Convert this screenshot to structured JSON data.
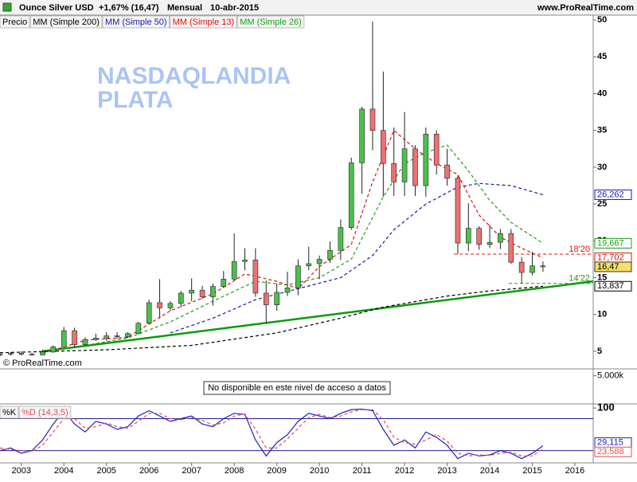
{
  "header": {
    "instrument": "Ounce Silver USD",
    "change": "+1,67% (16,47)",
    "period": "Mensual",
    "date": "10-abr-2015",
    "site": "www.ProRealTime.com"
  },
  "chart_data": [
    {
      "type": "candlestick",
      "name": "Precio",
      "annotations": [
        "NASDAQLANDIA",
        "PLATA"
      ],
      "source": "© ProRealTime.com",
      "x": [
        2002.5,
        2002.75,
        2003,
        2003.25,
        2003.5,
        2003.75,
        2004,
        2004.25,
        2004.5,
        2004.75,
        2005,
        2005.25,
        2005.5,
        2005.75,
        2006,
        2006.25,
        2006.5,
        2006.75,
        2007,
        2007.25,
        2007.5,
        2007.75,
        2008,
        2008.25,
        2008.5,
        2008.75,
        2009,
        2009.25,
        2009.5,
        2009.75,
        2010,
        2010.25,
        2010.5,
        2010.75,
        2011,
        2011.25,
        2011.5,
        2011.75,
        2012,
        2012.25,
        2012.5,
        2012.75,
        2013,
        2013.25,
        2013.5,
        2013.75,
        2014,
        2014.25,
        2014.5,
        2014.75,
        2015,
        2015.25
      ],
      "open": [
        4.5,
        4.6,
        4.7,
        4.6,
        4.5,
        4.9,
        5.6,
        7.8,
        5.9,
        6.6,
        6.8,
        7.1,
        7.0,
        7.4,
        8.8,
        11.6,
        10.9,
        11.5,
        12.9,
        13.3,
        12.4,
        13.8,
        14.8,
        17.2,
        17.4,
        12.9,
        11.3,
        13.0,
        13.6,
        16.6,
        16.9,
        17.5,
        18.7,
        21.8,
        30.6,
        37.9,
        35.0,
        30.5,
        28.0,
        32.5,
        27.5,
        34.5,
        30.3,
        28.5,
        19.7,
        21.7,
        19.5,
        19.8,
        21.0,
        17.1,
        15.7,
        16.6
      ],
      "high": [
        4.8,
        4.9,
        5.0,
        4.8,
        5.2,
        5.8,
        8.3,
        8.2,
        6.9,
        7.4,
        7.6,
        7.6,
        7.6,
        9.0,
        12.0,
        14.8,
        11.8,
        13.2,
        14.9,
        13.9,
        14.2,
        15.9,
        21.0,
        19.0,
        19.0,
        14.6,
        14.2,
        15.8,
        17.5,
        19.2,
        18.0,
        19.9,
        22.9,
        31.3,
        38.2,
        49.8,
        43.0,
        35.4,
        37.5,
        33.0,
        35.4,
        35.0,
        32.5,
        28.9,
        25.1,
        22.0,
        22.2,
        21.6,
        21.6,
        17.8,
        18.5,
        17.2
      ],
      "low": [
        4.3,
        4.4,
        4.4,
        4.4,
        4.5,
        4.8,
        5.6,
        5.5,
        5.8,
        6.4,
        6.4,
        6.7,
        6.8,
        7.3,
        8.7,
        9.5,
        10.5,
        11.0,
        11.8,
        12.1,
        11.2,
        13.6,
        14.6,
        16.0,
        12.4,
        8.8,
        10.5,
        12.5,
        12.6,
        16.0,
        14.8,
        17.0,
        17.4,
        21.5,
        26.4,
        32.3,
        26.0,
        26.1,
        26.1,
        26.1,
        26.0,
        29.0,
        27.5,
        18.2,
        18.6,
        18.8,
        19.0,
        18.9,
        16.9,
        14.2,
        15.3,
        15.8
      ],
      "close": [
        4.6,
        4.7,
        4.6,
        4.5,
        4.9,
        5.6,
        7.8,
        5.9,
        6.6,
        6.8,
        7.1,
        7.0,
        7.4,
        8.8,
        11.6,
        10.9,
        11.5,
        12.9,
        13.3,
        12.4,
        13.8,
        14.8,
        17.2,
        17.4,
        12.9,
        11.3,
        13.0,
        13.6,
        16.6,
        16.9,
        17.5,
        18.7,
        21.8,
        30.6,
        37.9,
        35.0,
        30.5,
        28.0,
        32.5,
        27.5,
        34.5,
        30.3,
        28.5,
        19.7,
        21.7,
        19.5,
        19.8,
        21.0,
        17.1,
        15.7,
        16.6,
        16.47
      ],
      "close_label": "16,47",
      "up_color": "#4cc04c",
      "down_color": "#ee7070",
      "series": [
        {
          "name": "MM (Simple 200)",
          "color": "#000000",
          "x": [
            2002.5,
            2005,
            2007,
            2009,
            2010.5,
            2011.5,
            2013,
            2014,
            2015.25
          ],
          "values": [
            4.8,
            5.2,
            5.8,
            7.5,
            9.5,
            11,
            12.5,
            13.2,
            13.837
          ],
          "last_label": "13,837"
        },
        {
          "name": "MM (Simple 50)",
          "color": "#1a1aa8",
          "x": [
            2006.5,
            2007.5,
            2008.5,
            2009.5,
            2010.5,
            2011.25,
            2011.75,
            2012.5,
            2013.25,
            2013.75,
            2014.5,
            2015.25
          ],
          "values": [
            7.5,
            9.5,
            12,
            13.5,
            15,
            18,
            21.5,
            25,
            27.3,
            27.8,
            27.5,
            26.262
          ],
          "last_label": "26,262"
        },
        {
          "name": "MM (Simple 13)",
          "color": "#e01010",
          "x": [
            2003.5,
            2004.5,
            2005.5,
            2006.5,
            2007.5,
            2008.25,
            2009,
            2009.5,
            2010,
            2010.75,
            2011.25,
            2011.75,
            2012.25,
            2012.75,
            2013.25,
            2013.75,
            2014.25,
            2014.75,
            2015.25
          ],
          "values": [
            4.7,
            6.5,
            6.9,
            10.5,
            12.8,
            15.5,
            14.5,
            13.5,
            16.5,
            19.5,
            28,
            35,
            32.5,
            30.5,
            29,
            23.5,
            20.5,
            19,
            17.702
          ],
          "last_label": "17,702"
        },
        {
          "name": "MM (Simple 26)",
          "color": "#18a018",
          "x": [
            2004.5,
            2005.5,
            2006.5,
            2007.5,
            2008.5,
            2009.25,
            2010,
            2010.75,
            2011.5,
            2012,
            2012.5,
            2013,
            2013.5,
            2014,
            2014.5,
            2015.25
          ],
          "values": [
            5.8,
            6.8,
            9,
            11.8,
            14.5,
            14,
            15,
            17.5,
            26,
            30.5,
            32,
            33,
            29.5,
            25.5,
            22.5,
            19.667
          ],
          "last_label": "19,667"
        }
      ],
      "trendline": {
        "color": "#0a9a0a",
        "x": [
          2003.5,
          2016.43
        ],
        "values": [
          5,
          14.5
        ]
      },
      "levels": [
        {
          "value": 18.2,
          "label": "18'20",
          "color": "#e01010",
          "from": 2013.16
        },
        {
          "value": 14.22,
          "label": "14'22",
          "color": "#18a018",
          "from": 2014.45
        }
      ],
      "xlim": [
        2002.5,
        2016.43
      ],
      "ylim": [
        2.61,
        50.66
      ],
      "yticks": [
        5,
        10,
        15,
        20,
        25,
        30,
        35,
        40,
        45,
        50
      ]
    },
    {
      "type": "volume",
      "note": "No disponible en este nivel de acceso a datos",
      "ylim": [
        0,
        6000000
      ],
      "yticks": [
        {
          "value": 5000000,
          "label": "5.000k"
        }
      ]
    },
    {
      "type": "stochastic",
      "x": [
        2002.5,
        2002.75,
        2003,
        2003.25,
        2003.5,
        2003.75,
        2004,
        2004.25,
        2004.5,
        2004.75,
        2005,
        2005.25,
        2005.5,
        2005.75,
        2006,
        2006.25,
        2006.5,
        2006.75,
        2007,
        2007.25,
        2007.5,
        2007.75,
        2008,
        2008.25,
        2008.5,
        2008.75,
        2009,
        2009.25,
        2009.5,
        2009.75,
        2010,
        2010.25,
        2010.5,
        2010.75,
        2011,
        2011.25,
        2011.5,
        2011.75,
        2012,
        2012.25,
        2012.5,
        2012.75,
        2013,
        2013.25,
        2013.5,
        2013.75,
        2014,
        2014.25,
        2014.5,
        2014.75,
        2015,
        2015.25
      ],
      "series": [
        {
          "name": "%K",
          "color": "#2020c0",
          "values": [
            20,
            25,
            15,
            20,
            40,
            70,
            95,
            70,
            55,
            75,
            70,
            60,
            65,
            85,
            95,
            85,
            75,
            80,
            85,
            70,
            65,
            80,
            90,
            88,
            40,
            10,
            35,
            50,
            75,
            90,
            85,
            80,
            90,
            97,
            98,
            95,
            60,
            30,
            40,
            25,
            55,
            45,
            30,
            5,
            15,
            10,
            12,
            20,
            15,
            5,
            15,
            29.115
          ],
          "last_label": "29,115"
        },
        {
          "name": "%D (14,3,5)",
          "color": "#e05050",
          "values": [
            25,
            22,
            20,
            18,
            30,
            55,
            80,
            80,
            62,
            65,
            72,
            65,
            62,
            75,
            90,
            90,
            80,
            78,
            82,
            77,
            68,
            72,
            85,
            89,
            60,
            25,
            25,
            42,
            62,
            82,
            88,
            82,
            85,
            93,
            97,
            97,
            78,
            45,
            35,
            32,
            40,
            50,
            38,
            15,
            10,
            12,
            11,
            15,
            17,
            10,
            10,
            23.588
          ],
          "last_label": "23,588"
        }
      ],
      "levels": [
        20,
        80
      ],
      "xlim": [
        2002.5,
        2016.43
      ],
      "ylim": [
        -1.5,
        106.2
      ],
      "yticks": [
        100
      ],
      "xticks": [
        2003,
        2004,
        2005,
        2006,
        2007,
        2008,
        2009,
        2010,
        2011,
        2012,
        2013,
        2014,
        2015,
        2016
      ]
    }
  ]
}
